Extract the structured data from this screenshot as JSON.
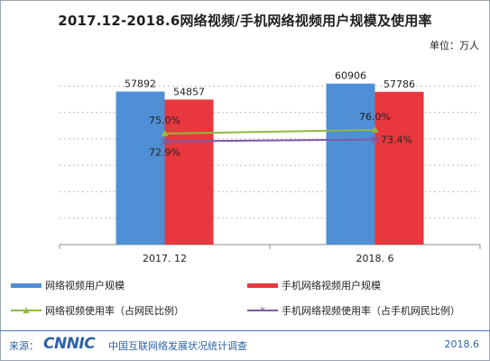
{
  "header": {
    "title": "2017.12-2018.6网络视频/手机网络视频用户规模及使用率",
    "unit": "单位：万人"
  },
  "colors": {
    "series_video_users": "#4f8fd6",
    "series_mobile_users": "#e8383d",
    "series_video_rate": "#8fba3e",
    "series_mobile_rate": "#7a5aa6",
    "grid": "#bfbfbf",
    "footer_blue": "#2e63a6"
  },
  "legend": {
    "item1": "网络视频用户规模",
    "item2": "手机网络视频用户规模",
    "item3": "网络视频使用率（占网民比例）",
    "item4": "手机网络视频使用率（占手机网民比例）",
    "marker3_icon": "triangle-marker-icon",
    "marker4_icon": "cross-marker-icon"
  },
  "footer": {
    "source_label": "来源：",
    "logo_text": "CNNIC",
    "org": "中国互联网络发展状况统计调查",
    "date": "2018.6"
  },
  "chart_data": {
    "type": "bar",
    "categories": [
      "2017. 12",
      "2018. 6"
    ],
    "series": [
      {
        "name": "网络视频用户规模",
        "type": "bar",
        "values": [
          57892,
          60906
        ],
        "labels": [
          "57892",
          "60906"
        ]
      },
      {
        "name": "手机网络视频用户规模",
        "type": "bar",
        "values": [
          54857,
          57786
        ],
        "labels": [
          "54857",
          "57786"
        ]
      },
      {
        "name": "网络视频使用率（占网民比例）",
        "type": "line",
        "values": [
          75.0,
          76.0
        ],
        "labels": [
          "75.0%",
          "76.0%"
        ]
      },
      {
        "name": "手机网络视频使用率（占手机网民比例）",
        "type": "line",
        "values": [
          72.9,
          73.4
        ],
        "labels": [
          "72.9%",
          "73.4%"
        ]
      }
    ],
    "title": "2017.12-2018.6网络视频/手机网络视频用户规模及使用率",
    "ylabel": "单位：万人",
    "ylim": [
      0,
      70000
    ],
    "rate_ylim": [
      0,
      100
    ],
    "grid": true,
    "legend_position": "bottom"
  }
}
